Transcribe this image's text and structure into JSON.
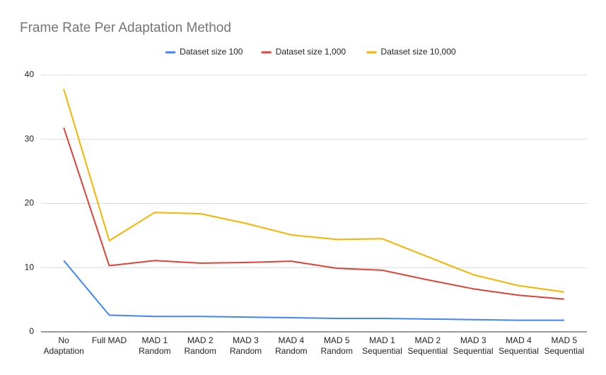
{
  "chart_data": {
    "type": "line",
    "title": "Frame Rate Per Adaptation Method",
    "categories": [
      "No\nAdaptation",
      "Full MAD",
      "MAD 1\nRandom",
      "MAD 2\nRandom",
      "MAD 3\nRandom",
      "MAD 4\nRandom",
      "MAD 5\nRandom",
      "MAD 1\nSequential",
      "MAD 2\nSequential",
      "MAD 3\nSequential",
      "MAD 4\nSequential",
      "MAD 5\nSequential"
    ],
    "series": [
      {
        "name": "Dataset size 100",
        "color": "#4285f4",
        "values": [
          11.1,
          2.6,
          2.4,
          2.4,
          2.3,
          2.2,
          2.1,
          2.1,
          2.0,
          1.9,
          1.8,
          1.8
        ]
      },
      {
        "name": "Dataset size 1,000",
        "color": "#db4437",
        "values": [
          31.8,
          10.3,
          11.1,
          10.7,
          10.8,
          11.0,
          9.9,
          9.6,
          8.1,
          6.7,
          5.7,
          5.1
        ]
      },
      {
        "name": "Dataset size 10,000",
        "color": "#f4b400",
        "values": [
          37.8,
          14.2,
          18.6,
          18.4,
          16.9,
          15.1,
          14.4,
          14.5,
          11.7,
          8.9,
          7.2,
          6.2
        ]
      }
    ],
    "ylim": [
      0,
      40
    ],
    "yticks": [
      0,
      10,
      20,
      30,
      40
    ],
    "grid": true,
    "legend": "top"
  }
}
